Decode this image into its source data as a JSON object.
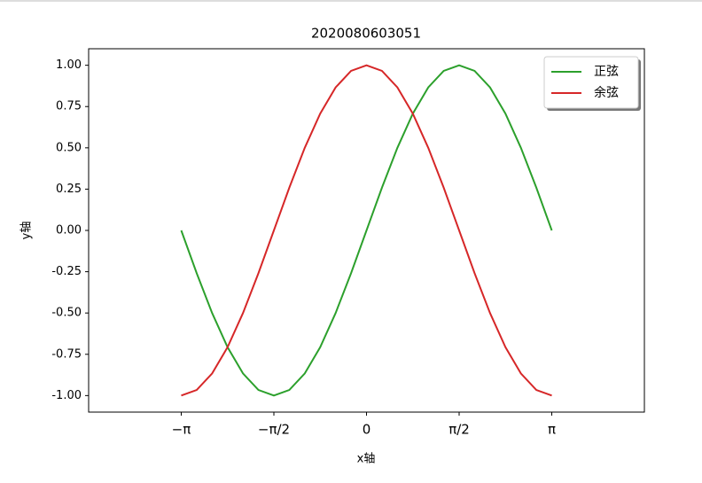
{
  "chart_data": {
    "type": "line",
    "title": "2020080603051",
    "x_label": "x轴",
    "y_label": "y轴",
    "x": [
      -3.1416,
      -2.8798,
      -2.618,
      -2.3562,
      -2.0944,
      -1.8326,
      -1.5708,
      -1.309,
      -1.0472,
      -0.7854,
      -0.5236,
      -0.2618,
      0,
      0.2618,
      0.5236,
      0.7854,
      1.0472,
      1.309,
      1.5708,
      1.8326,
      2.0944,
      2.3562,
      2.618,
      2.8798,
      3.1416
    ],
    "series": [
      {
        "name": "正弦",
        "color": "#2ca02c",
        "values": [
          0,
          -0.2588,
          -0.5,
          -0.7071,
          -0.866,
          -0.9659,
          -1,
          -0.9659,
          -0.866,
          -0.7071,
          -0.5,
          -0.2588,
          0,
          0.2588,
          0.5,
          0.7071,
          0.866,
          0.9659,
          1,
          0.9659,
          0.866,
          0.7071,
          0.5,
          0.2588,
          0
        ]
      },
      {
        "name": "余弦",
        "color": "#d62728",
        "values": [
          -1,
          -0.9659,
          -0.866,
          -0.7071,
          -0.5,
          -0.2588,
          0,
          0.2588,
          0.5,
          0.7071,
          0.866,
          0.9659,
          1,
          0.9659,
          0.866,
          0.7071,
          0.5,
          0.2588,
          0,
          -0.2588,
          -0.5,
          -0.7071,
          -0.866,
          -0.9659,
          -1
        ]
      }
    ],
    "xlim": [
      -4.712,
      4.712
    ],
    "ylim": [
      -1.1,
      1.1
    ],
    "xticks": [
      {
        "value": -3.1416,
        "label": "−π"
      },
      {
        "value": -1.5708,
        "label": "−π/2"
      },
      {
        "value": 0,
        "label": "0"
      },
      {
        "value": 1.5708,
        "label": "π/2"
      },
      {
        "value": 3.1416,
        "label": "π"
      }
    ],
    "yticks": [
      {
        "value": 1,
        "label": "1.00"
      },
      {
        "value": 0.75,
        "label": "0.75"
      },
      {
        "value": 0.5,
        "label": "0.50"
      },
      {
        "value": 0.25,
        "label": "0.25"
      },
      {
        "value": 0,
        "label": "0.00"
      },
      {
        "value": -0.25,
        "label": "-0.25"
      },
      {
        "value": -0.5,
        "label": "-0.50"
      },
      {
        "value": -0.75,
        "label": "-0.75"
      },
      {
        "value": -1,
        "label": "-1.00"
      }
    ],
    "legend": "upper right"
  }
}
